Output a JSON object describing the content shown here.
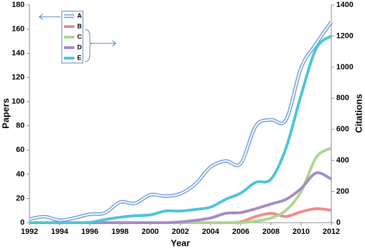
{
  "chart_data": {
    "type": "line",
    "x": [
      1992,
      1993,
      1994,
      1995,
      1996,
      1997,
      1998,
      1999,
      2000,
      2001,
      2002,
      2003,
      2004,
      2005,
      2006,
      2007,
      2008,
      2009,
      2010,
      2011,
      2012
    ],
    "x_label": "Year",
    "y_label": "Papers",
    "y2_label": "Citations",
    "xlim": [
      1992,
      2012
    ],
    "xticks": [
      1992,
      1994,
      1996,
      1998,
      2000,
      2002,
      2004,
      2006,
      2008,
      2010,
      2012
    ],
    "ylim": [
      0,
      180
    ],
    "yticks": [
      0,
      20,
      40,
      60,
      80,
      100,
      120,
      140,
      160,
      180
    ],
    "y2lim": [
      0,
      1400
    ],
    "y2ticks": [
      0,
      200,
      400,
      600,
      800,
      1000,
      1200,
      1400
    ],
    "series": [
      {
        "name": "A",
        "color": "#6f9fd8",
        "values": [
          3,
          5,
          2,
          4,
          7,
          8,
          17,
          16,
          23,
          22,
          24,
          32,
          46,
          51,
          49,
          80,
          85,
          85,
          128,
          148,
          166
        ]
      },
      {
        "name": "B",
        "color": "#f08a8a",
        "axis": "y2",
        "values": [
          0,
          0,
          0,
          0,
          0,
          0,
          0,
          0,
          0,
          0,
          0,
          0,
          0,
          0,
          5,
          40,
          60,
          40,
          70,
          90,
          80
        ]
      },
      {
        "name": "C",
        "color": "#a9d88e",
        "axis": "y2",
        "values": [
          0,
          0,
          0,
          0,
          0,
          0,
          0,
          0,
          0,
          0,
          0,
          0,
          0,
          0,
          0,
          10,
          30,
          80,
          200,
          420,
          480
        ]
      },
      {
        "name": "D",
        "color": "#a68bc6",
        "axis": "y2",
        "values": [
          0,
          0,
          0,
          0,
          0,
          0,
          0,
          0,
          0,
          0,
          5,
          15,
          30,
          60,
          65,
          90,
          120,
          150,
          220,
          320,
          280
        ]
      },
      {
        "name": "E",
        "color": "#4cc5d6",
        "axis": "y2",
        "values": [
          0,
          0,
          0,
          0,
          2,
          20,
          35,
          45,
          50,
          75,
          75,
          85,
          100,
          150,
          190,
          260,
          280,
          480,
          820,
          1120,
          1200
        ]
      }
    ]
  }
}
